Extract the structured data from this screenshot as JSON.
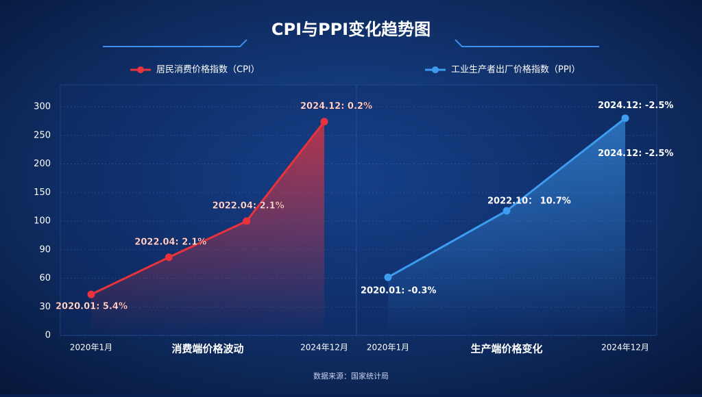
{
  "title": "CPI与PPI变化趋势图",
  "source": "数据来源：国家统计局",
  "chart_data": [
    {
      "type": "line",
      "xlabel": "消费端价格波动",
      "categories": [
        "2020年1月",
        null,
        null,
        "2024年12月"
      ],
      "series": [
        {
          "name": "居民消费价格指数（CPI）",
          "color": "#e8333c",
          "values": [
            43,
            82,
            100,
            274
          ]
        }
      ],
      "annotations": [
        "2020.01: 5.4%",
        "2022.04: 2.1%",
        "2022.04: 2.1%",
        "2024.12: 0.2%"
      ],
      "ylim": [
        0,
        300
      ],
      "yticks": [
        0,
        30,
        60,
        90,
        100,
        150,
        200,
        250,
        300
      ],
      "grid": true
    },
    {
      "type": "line",
      "xlabel": "生产端价格变化",
      "categories": [
        "2020年1月",
        null,
        "2024年12月"
      ],
      "series": [
        {
          "name": "工业生产者出厂价格指数（PPI）",
          "color": "#3d9bf0",
          "values": [
            61,
            118,
            280
          ]
        }
      ],
      "annotations": [
        "2020.01: -0.3%",
        "2022.10： 10.7%",
        "2024.12: -2.5%",
        "2024.12: -2.5%"
      ],
      "ylim": [
        0,
        300
      ],
      "grid": true
    }
  ]
}
